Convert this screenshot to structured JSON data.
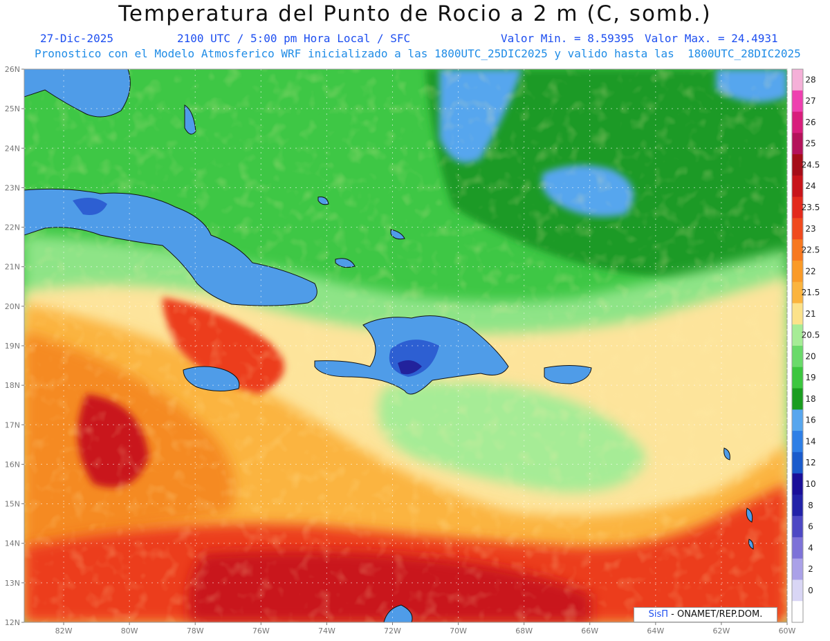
{
  "header": {
    "title": "Temperatura del Punto de Rocio a 2 m (C, somb.)",
    "date": "27-Dic-2025",
    "time": "2100 UTC / 5:00 pm Hora Local / SFC",
    "min_value": "Valor Min. = 8.59395",
    "max_value": "Valor Max. = 24.4931",
    "model_line": "Pronostico con el Modelo Atmosferico WRF inicializado a las 1800UTC_25DIC2025 y valido hasta las  1800UTC_28DIC2025"
  },
  "axes": {
    "lat_labels": [
      "26N",
      "25N",
      "24N",
      "23N",
      "22N",
      "21N",
      "20N",
      "19N",
      "18N",
      "17N",
      "16N",
      "15N",
      "14N",
      "13N",
      "12N"
    ],
    "lon_labels": [
      "82W",
      "80W",
      "78W",
      "76W",
      "74W",
      "72W",
      "70W",
      "68W",
      "66W",
      "64W",
      "62W",
      "60W"
    ],
    "lat_range": [
      12,
      26
    ],
    "lon_range": [
      -83.2,
      -60
    ]
  },
  "colorbar": {
    "levels": [
      "28",
      "27",
      "26",
      "25",
      "24.5",
      "24",
      "23.5",
      "23",
      "22.5",
      "22",
      "21.5",
      "21",
      "20.5",
      "20",
      "19",
      "18",
      "16",
      "14",
      "12",
      "10",
      "8",
      "6",
      "4",
      "2",
      "0"
    ],
    "colors": [
      "#f5b0d8",
      "#ee40b0",
      "#d81d7c",
      "#b4125a",
      "#a50d18",
      "#c8141a",
      "#e32a1c",
      "#f04a1e",
      "#f7781f",
      "#fa9a27",
      "#fbb43e",
      "#fce28a",
      "#a6ec96",
      "#6ada6a",
      "#3cc63f",
      "#1a9d1f",
      "#57a6ee",
      "#2e7fe6",
      "#1a5bcc",
      "#1a0f99",
      "#2222a8",
      "#4d48c4",
      "#7d72d8",
      "#aaa1e8",
      "#d9d6f5",
      "#ffffff"
    ]
  },
  "map": {
    "colors": {
      "ocean_green": "#3ec745",
      "light_green": "#7fe07a",
      "yellow": "#fde49b",
      "orange": "#fbb43f",
      "dark_orange": "#f58a24",
      "red": "#ec3e1e",
      "dark_red": "#c9171a",
      "land_blue": "#4f9ce8",
      "deep_blue": "#2d5fd2",
      "navy": "#22229c"
    }
  },
  "credit": {
    "brand": "SisΠ",
    "text": " - ONAMET/REP.DOM."
  }
}
